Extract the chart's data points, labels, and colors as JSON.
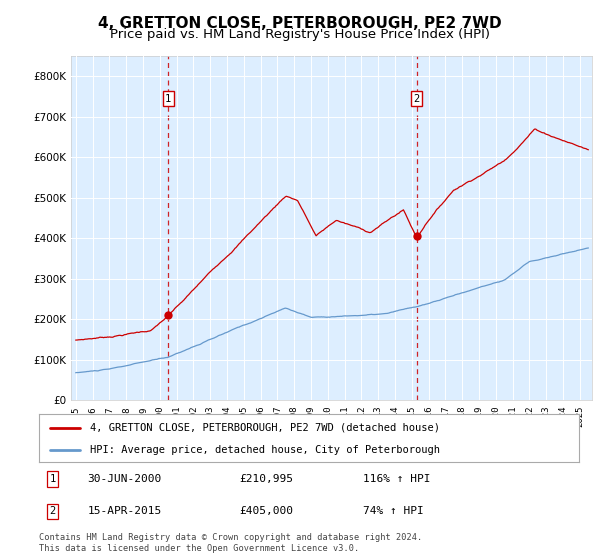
{
  "title": "4, GRETTON CLOSE, PETERBOROUGH, PE2 7WD",
  "subtitle": "Price paid vs. HM Land Registry's House Price Index (HPI)",
  "title_fontsize": 11,
  "subtitle_fontsize": 9.5,
  "background_color": "#ffffff",
  "plot_bg_color": "#ddeeff",
  "grid_color": "#ffffff",
  "red_line_color": "#cc0000",
  "blue_line_color": "#6699cc",
  "sale1_date_num": 2000.5,
  "sale1_price": 210995,
  "sale1_label": "1",
  "sale1_hpi_pct": "116% ↑ HPI",
  "sale1_date_str": "30-JUN-2000",
  "sale2_date_num": 2015.29,
  "sale2_price": 405000,
  "sale2_label": "2",
  "sale2_hpi_pct": "74% ↑ HPI",
  "sale2_date_str": "15-APR-2015",
  "ylim": [
    0,
    850000
  ],
  "xlim_start": 1994.7,
  "xlim_end": 2025.7,
  "legend_red": "4, GRETTON CLOSE, PETERBOROUGH, PE2 7WD (detached house)",
  "legend_blue": "HPI: Average price, detached house, City of Peterborough",
  "footnote": "Contains HM Land Registry data © Crown copyright and database right 2024.\nThis data is licensed under the Open Government Licence v3.0.",
  "yticks": [
    0,
    100000,
    200000,
    300000,
    400000,
    500000,
    600000,
    700000,
    800000
  ],
  "ytick_labels": [
    "£0",
    "£100K",
    "£200K",
    "£300K",
    "£400K",
    "£500K",
    "£600K",
    "£700K",
    "£800K"
  ]
}
